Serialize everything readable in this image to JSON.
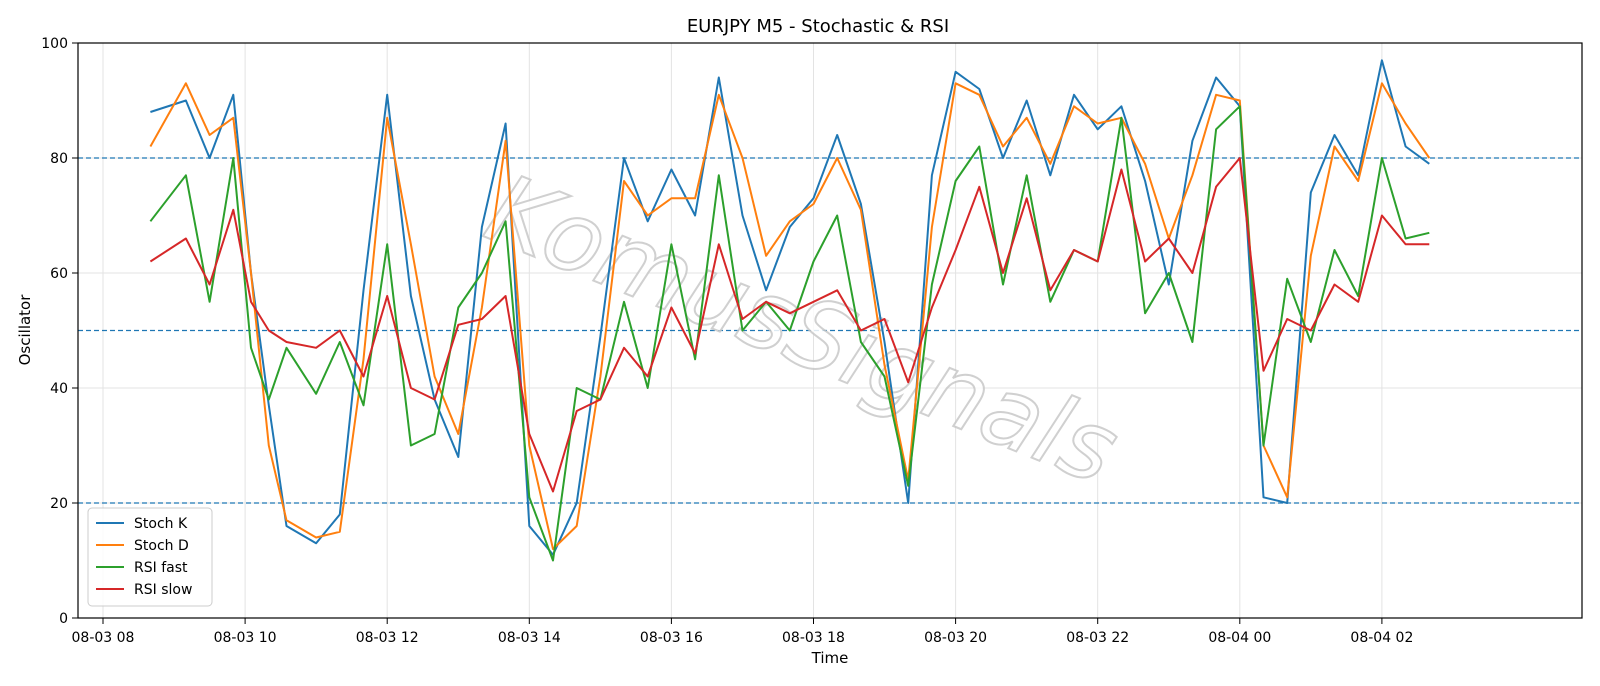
{
  "chart_data": {
    "type": "line",
    "title": "EURJPY M5 - Stochastic & RSI",
    "xlabel": "Time",
    "ylabel": "Oscillator",
    "ylim": [
      0,
      100
    ],
    "xlim": [
      "08-03 08:00",
      "08-04 04:00"
    ],
    "yticks": [
      0,
      20,
      40,
      60,
      80,
      100
    ],
    "xticks": [
      "08-03 08",
      "08-03 10",
      "08-03 12",
      "08-03 14",
      "08-03 16",
      "08-03 18",
      "08-03 20",
      "08-03 22",
      "08-04 00",
      "08-04 02"
    ],
    "reference_lines": [
      20,
      50,
      80
    ],
    "grid": true,
    "legend_position": "lower-left",
    "watermark": "KomusSignals",
    "x": [
      "08-03 08:40",
      "08-03 09:10",
      "08-03 09:30",
      "08-03 09:50",
      "08-03 10:05",
      "08-03 10:20",
      "08-03 10:35",
      "08-03 11:00",
      "08-03 11:20",
      "08-03 11:40",
      "08-03 12:00",
      "08-03 12:20",
      "08-03 12:40",
      "08-03 13:00",
      "08-03 13:20",
      "08-03 13:40",
      "08-03 14:00",
      "08-03 14:20",
      "08-03 14:40",
      "08-03 15:00",
      "08-03 15:20",
      "08-03 15:40",
      "08-03 16:00",
      "08-03 16:20",
      "08-03 16:40",
      "08-03 17:00",
      "08-03 17:20",
      "08-03 17:40",
      "08-03 18:00",
      "08-03 18:20",
      "08-03 18:40",
      "08-03 19:00",
      "08-03 19:20",
      "08-03 19:40",
      "08-03 20:00",
      "08-03 20:20",
      "08-03 20:40",
      "08-03 21:00",
      "08-03 21:20",
      "08-03 21:40",
      "08-03 22:00",
      "08-03 22:20",
      "08-03 22:40",
      "08-03 23:00",
      "08-03 23:20",
      "08-03 23:40",
      "08-04 00:00",
      "08-04 00:20",
      "08-04 00:40",
      "08-04 01:00",
      "08-04 01:20",
      "08-04 01:40",
      "08-04 02:00",
      "08-04 02:20",
      "08-04 02:40"
    ],
    "series": [
      {
        "name": "Stoch K",
        "color": "#1f77b4",
        "values": [
          88,
          90,
          80,
          91,
          60,
          37,
          16,
          13,
          18,
          57,
          91,
          56,
          38,
          28,
          68,
          86,
          16,
          11,
          20,
          49,
          80,
          69,
          78,
          70,
          94,
          70,
          57,
          68,
          73,
          84,
          72,
          48,
          20,
          77,
          95,
          92,
          80,
          90,
          77,
          91,
          85,
          89,
          76,
          58,
          83,
          94,
          89,
          21,
          20,
          74,
          84,
          77,
          97,
          82,
          79
        ]
      },
      {
        "name": "Stoch D",
        "color": "#ff7f0e",
        "values": [
          82,
          93,
          84,
          87,
          60,
          30,
          17,
          14,
          15,
          45,
          87,
          65,
          42,
          32,
          54,
          83,
          30,
          12,
          16,
          42,
          76,
          70,
          73,
          73,
          91,
          80,
          63,
          69,
          72,
          80,
          71,
          44,
          24,
          68,
          93,
          91,
          82,
          87,
          79,
          89,
          86,
          87,
          79,
          66,
          77,
          91,
          90,
          30,
          21,
          63,
          82,
          76,
          93,
          86,
          80
        ]
      },
      {
        "name": "RSI fast",
        "color": "#2ca02c",
        "values": [
          69,
          77,
          55,
          80,
          47,
          38,
          47,
          39,
          48,
          37,
          65,
          30,
          32,
          54,
          60,
          69,
          21,
          10,
          40,
          38,
          55,
          40,
          65,
          45,
          77,
          50,
          55,
          50,
          62,
          70,
          48,
          42,
          23,
          58,
          76,
          82,
          58,
          77,
          55,
          64,
          62,
          87,
          53,
          60,
          48,
          85,
          89,
          30,
          59,
          48,
          64,
          56,
          80,
          66,
          67
        ]
      },
      {
        "name": "RSI slow",
        "color": "#d62728",
        "values": [
          62,
          66,
          58,
          71,
          55,
          50,
          48,
          47,
          50,
          42,
          56,
          40,
          38,
          51,
          52,
          56,
          32,
          22,
          36,
          38,
          47,
          42,
          54,
          46,
          65,
          52,
          55,
          53,
          55,
          57,
          50,
          52,
          41,
          54,
          64,
          75,
          60,
          73,
          57,
          64,
          62,
          78,
          62,
          66,
          60,
          75,
          80,
          43,
          52,
          50,
          58,
          55,
          70,
          65,
          65
        ]
      }
    ]
  }
}
